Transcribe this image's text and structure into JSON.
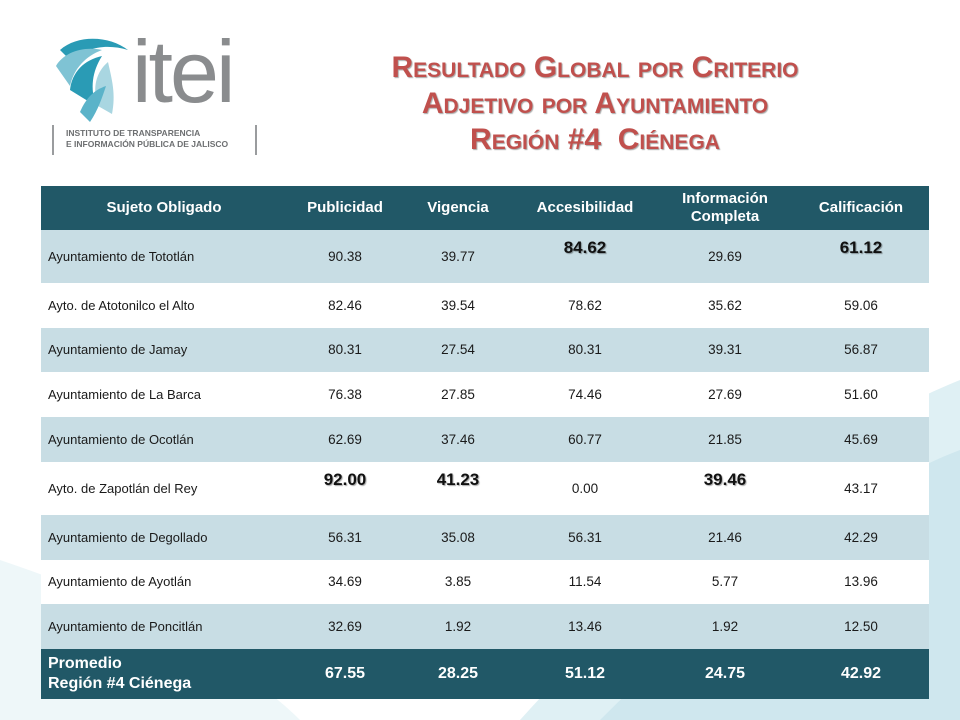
{
  "logo": {
    "word": "itei",
    "subtitle_line1": "INSTITUTO DE TRANSPARENCIA",
    "subtitle_line2": "E INFORMACIÓN PÚBLICA DE JALISCO"
  },
  "title": {
    "line1": "Resultado Global por Criterio",
    "line2": "Adjetivo por Ayuntamiento",
    "line3": "Región #4  Ciénega"
  },
  "colors": {
    "header_bg": "#215867",
    "row_alt_bg": "#c8dde4",
    "title_red": "#c0504d"
  },
  "table": {
    "headers": [
      "Sujeto Obligado",
      "Publicidad",
      "Vigencia",
      "Accesibilidad",
      "Información Completa",
      "Calificación"
    ],
    "rows": [
      {
        "name": "Ayuntamiento de Tototlán",
        "values": [
          "90.38",
          "39.77",
          "84.62",
          "29.69",
          "61.12"
        ]
      },
      {
        "name": "Ayto. de Atotonilco el Alto",
        "values": [
          "82.46",
          "39.54",
          "78.62",
          "35.62",
          "59.06"
        ]
      },
      {
        "name": "Ayuntamiento de Jamay",
        "values": [
          "80.31",
          "27.54",
          "80.31",
          "39.31",
          "56.87"
        ]
      },
      {
        "name": "Ayuntamiento de La Barca",
        "values": [
          "76.38",
          "27.85",
          "74.46",
          "27.69",
          "51.60"
        ]
      },
      {
        "name": "Ayuntamiento de Ocotlán",
        "values": [
          "62.69",
          "37.46",
          "60.77",
          "21.85",
          "45.69"
        ]
      },
      {
        "name": "Ayto. de Zapotlán del Rey",
        "values": [
          "92.00",
          "41.23",
          "0.00",
          "39.46",
          "43.17"
        ]
      },
      {
        "name": "Ayuntamiento de Degollado",
        "values": [
          "56.31",
          "35.08",
          "56.31",
          "21.46",
          "42.29"
        ]
      },
      {
        "name": "Ayuntamiento de Ayotlán",
        "values": [
          "34.69",
          "3.85",
          "11.54",
          "5.77",
          "13.96"
        ]
      },
      {
        "name": "Ayuntamiento de Poncitlán",
        "values": [
          "32.69",
          "1.92",
          "13.46",
          "1.92",
          "12.50"
        ]
      }
    ],
    "average": {
      "name_line1": "Promedio",
      "name_line2": "Región #4 Ciénega",
      "values": [
        "67.55",
        "28.25",
        "51.12",
        "24.75",
        "42.92"
      ]
    }
  }
}
